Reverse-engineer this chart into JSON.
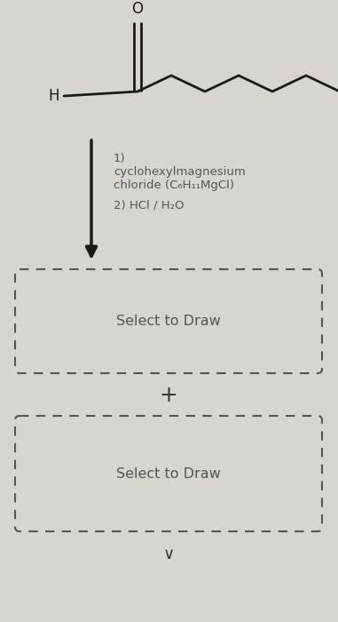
{
  "background_color": "#d8d5d0",
  "molecule_color": "#1a1a1a",
  "arrow_color": "#1a1a1a",
  "text_color": "#555555",
  "dashed_box_color": "#555555",
  "step1_line1": "1)",
  "step1_line2": "cyclohexylmagnesium",
  "step1_line3": "chloride (C₆H₁₁MgCl)",
  "step2_text": "2) HCl / H₂O",
  "select_to_draw": "Select to Draw",
  "plus_text": "+",
  "h_label": "H",
  "o_label": "O",
  "chevron": "∨"
}
